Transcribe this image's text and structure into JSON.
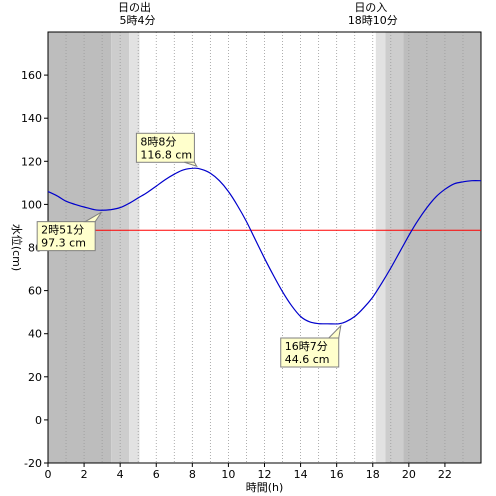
{
  "chart_data": {
    "type": "line",
    "xlabel": "時間(h)",
    "ylabel": "水位(cm)",
    "xlim": [
      0,
      24
    ],
    "ylim": [
      -20,
      180
    ],
    "xticks": [
      0,
      2,
      4,
      6,
      8,
      10,
      12,
      14,
      16,
      18,
      20,
      22
    ],
    "xtick_labels": [
      "0",
      "2",
      "4",
      "6",
      "8",
      "10",
      "12",
      "14",
      "16",
      "18",
      "20",
      "22"
    ],
    "yticks": [
      -20,
      0,
      20,
      40,
      60,
      80,
      100,
      120,
      140,
      160
    ],
    "ytick_labels": [
      "-20",
      "0",
      "20",
      "40",
      "60",
      "80",
      "100",
      "120",
      "140",
      "160"
    ],
    "grid": "vertical dotted lines every hour",
    "reference_line": {
      "y": 88,
      "color": "#ff0000"
    },
    "sunrise": {
      "title": "日の出",
      "time": "5時4分",
      "hour": 5.07
    },
    "sunset": {
      "title": "日の入",
      "time": "18時10分",
      "hour": 18.17
    },
    "night_bands": [
      {
        "from": 0,
        "to": 3.5,
        "shade": "dark"
      },
      {
        "from": 3.5,
        "to": 4.5,
        "shade": "medium"
      },
      {
        "from": 4.5,
        "to": 5.07,
        "shade": "light"
      },
      {
        "from": 18.17,
        "to": 18.7,
        "shade": "light"
      },
      {
        "from": 18.7,
        "to": 19.7,
        "shade": "medium"
      },
      {
        "from": 19.7,
        "to": 24,
        "shade": "dark"
      }
    ],
    "series": [
      {
        "color": "#0000cc",
        "x": [
          0,
          0.5,
          1,
          1.5,
          2,
          2.5,
          2.85,
          3.5,
          4,
          4.5,
          5,
          5.5,
          6,
          6.5,
          7,
          7.5,
          8.13,
          8.5,
          9,
          9.5,
          10,
          10.5,
          11,
          11.5,
          12,
          12.5,
          13,
          13.5,
          14,
          14.5,
          15,
          15.5,
          16.12,
          16.5,
          17,
          17.5,
          18,
          18.5,
          19,
          19.5,
          20,
          20.5,
          21,
          21.5,
          22,
          22.5,
          23,
          23.5,
          24
        ],
        "y": [
          106,
          104,
          101.5,
          100,
          98.8,
          97.7,
          97.3,
          97.6,
          98.5,
          100.5,
          103,
          105.5,
          108.5,
          111.5,
          114,
          116,
          116.8,
          116.3,
          114.5,
          111,
          106,
          99.5,
          92,
          83.5,
          75,
          67,
          59.5,
          53,
          48,
          45.5,
          44.7,
          44.6,
          44.6,
          45.5,
          48,
          52,
          57,
          63.5,
          70.5,
          78,
          85.5,
          92.5,
          98.5,
          103.5,
          107,
          109.5,
          110.5,
          111,
          111
        ]
      }
    ],
    "annotations": [
      {
        "line1": "8時8分",
        "line2": "116.8 cm",
        "x": 8.13,
        "y": 116.8,
        "box_x": 4.9,
        "box_y": 133,
        "pointer": "bottom-right"
      },
      {
        "line1": "2時51分",
        "line2": "97.3 cm",
        "x": 2.85,
        "y": 97.3,
        "box_x": -0.6,
        "box_y": 92,
        "pointer": "top-right"
      },
      {
        "line1": "16時7分",
        "line2": "44.6 cm",
        "x": 16.12,
        "y": 44.6,
        "box_x": 12.9,
        "box_y": 38,
        "pointer": "top-right"
      }
    ],
    "colors": {
      "dark": "#bdbdbd",
      "medium": "#cdcdcd",
      "light": "#e2e2e2",
      "annotation_fill": "#ffffcc",
      "annotation_border": "#808080"
    }
  }
}
